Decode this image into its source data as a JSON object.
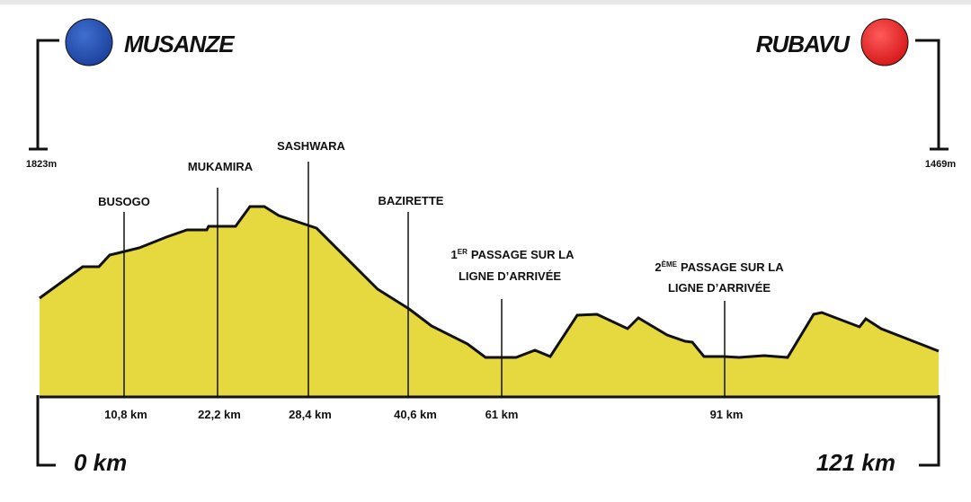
{
  "start": {
    "town": "MUSANZE",
    "altitude": "1823m",
    "distance": "0 km"
  },
  "finish": {
    "town": "RUBAVU",
    "altitude": "1469m",
    "distance": "121 km"
  },
  "landmarks": [
    {
      "name": "BUSOGO",
      "distance": "10,8 km"
    },
    {
      "name": "MUKAMIRA",
      "distance": "22,2 km"
    },
    {
      "name": "SASHWARA",
      "distance": "28,4 km"
    },
    {
      "name": "BAZIRETTE",
      "distance": "40,6 km"
    }
  ],
  "passages": [
    {
      "ordinal": "1",
      "suffix": "ER",
      "line1": "PASSAGE SUR LA",
      "line2": "LIGNE D’ARRIVÉE",
      "distance": "61 km"
    },
    {
      "ordinal": "2",
      "suffix": "ÈME",
      "line1": "PASSAGE SUR LA",
      "line2": "LIGNE D’ARRIVÉE",
      "distance": "91 km"
    }
  ]
}
